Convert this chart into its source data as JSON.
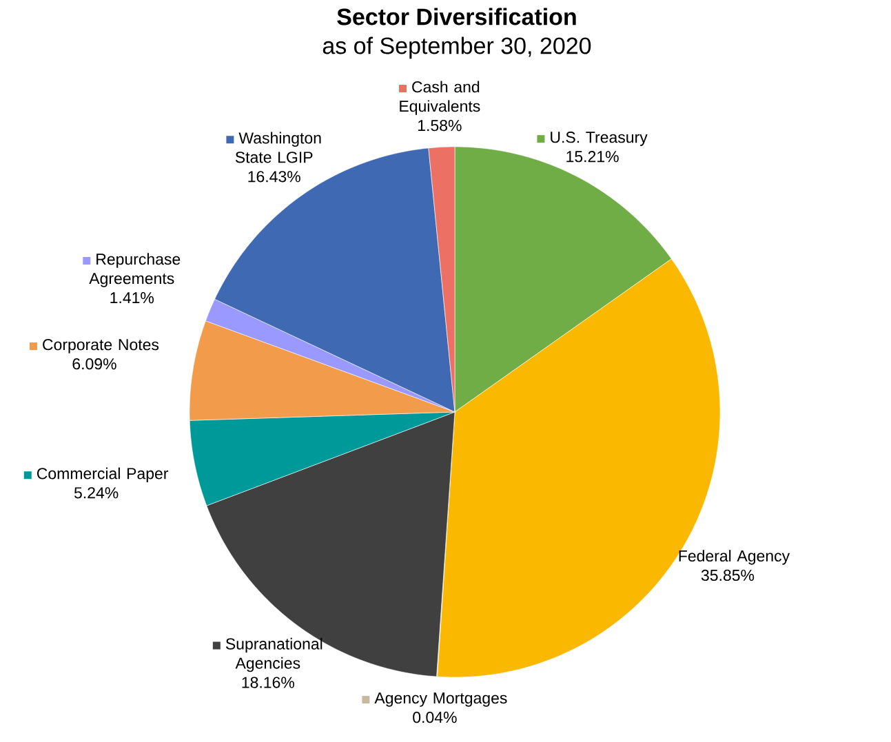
{
  "chart_data": {
    "type": "pie",
    "title": "Sector Diversification",
    "subtitle": "as of September 30, 2020",
    "categories": [
      "U.S. Treasury",
      "Federal Agency",
      "Agency Mortgages",
      "Supranational Agencies",
      "Commercial Paper",
      "Corporate Notes",
      "Repurchase Agreements",
      "Washington State LGIP",
      "Cash and Equivalents"
    ],
    "values": [
      15.21,
      35.85,
      0.04,
      18.16,
      5.24,
      6.09,
      1.41,
      16.43,
      1.58
    ],
    "value_labels": [
      "15.21%",
      "35.85%",
      "0.04%",
      "18.16%",
      "5.24%",
      "6.09%",
      "1.41%",
      "16.43%",
      "1.58%"
    ],
    "legend": "left",
    "colors": [
      "#70ad47",
      "#fbb800",
      "#c9b8a0",
      "#404040",
      "#009999",
      "#f29b4a",
      "#9999ff",
      "#3f69b2",
      "#ec7063"
    ]
  }
}
